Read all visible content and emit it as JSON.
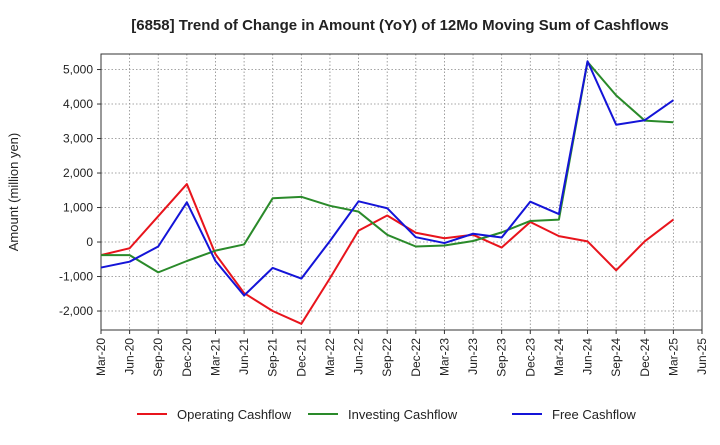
{
  "chart_data": {
    "type": "line",
    "title": "[6858]  Trend of Change in Amount (YoY) of 12Mo Moving Sum of Cashflows",
    "xlabel": "",
    "ylabel": "Amount (million yen)",
    "ylim": [
      -2550,
      5450
    ],
    "yticks": [
      -2000,
      -1000,
      0,
      1000,
      2000,
      3000,
      4000,
      5000
    ],
    "ytick_labels": [
      "-2,000",
      "-1,000",
      "0",
      "1,000",
      "2,000",
      "3,000",
      "4,000",
      "5,000"
    ],
    "grid": true,
    "legend_position": "bottom",
    "categories": [
      "Mar-20",
      "Jun-20",
      "Sep-20",
      "Dec-20",
      "Mar-21",
      "Jun-21",
      "Sep-21",
      "Dec-21",
      "Mar-22",
      "Jun-22",
      "Sep-22",
      "Dec-22",
      "Mar-23",
      "Jun-23",
      "Sep-23",
      "Dec-23",
      "Mar-24",
      "Jun-24",
      "Sep-24",
      "Dec-24",
      "Mar-25",
      "Jun-25"
    ],
    "series": [
      {
        "name": "Operating Cashflow",
        "color": "#e8141c",
        "values": [
          -380,
          -180,
          750,
          1680,
          -350,
          -1480,
          -2000,
          -2370,
          -1050,
          330,
          770,
          270,
          110,
          210,
          -160,
          580,
          170,
          20,
          -820,
          20,
          650,
          null
        ]
      },
      {
        "name": "Investing Cashflow",
        "color": "#2a8a2a",
        "values": [
          -380,
          -380,
          -880,
          -550,
          -250,
          -70,
          1270,
          1310,
          1050,
          880,
          210,
          -130,
          -100,
          30,
          280,
          610,
          650,
          5220,
          4250,
          3520,
          3470,
          null
        ]
      },
      {
        "name": "Free Cashflow",
        "color": "#1414d8",
        "values": [
          -740,
          -570,
          -130,
          1150,
          -550,
          -1550,
          -750,
          -1060,
          30,
          1180,
          980,
          140,
          -30,
          240,
          130,
          1170,
          810,
          5240,
          3400,
          3530,
          4110,
          null
        ]
      }
    ]
  }
}
